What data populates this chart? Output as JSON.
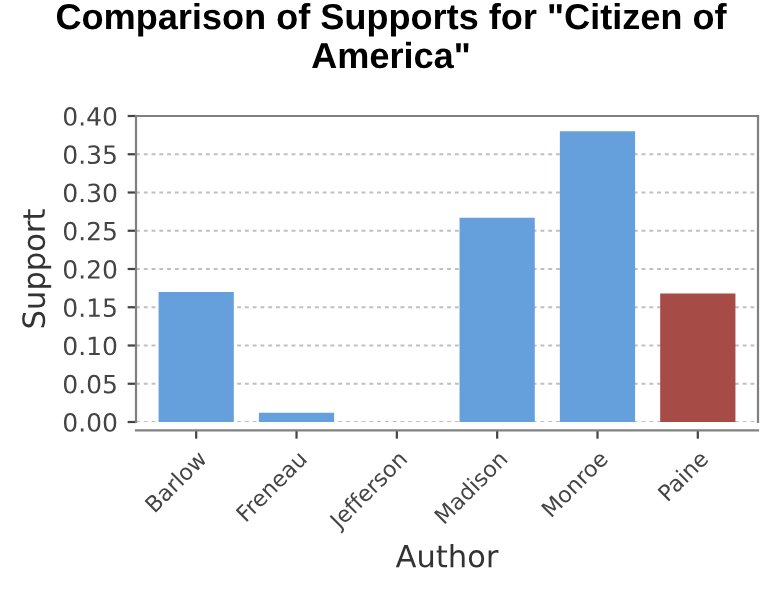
{
  "chart_data": {
    "type": "bar",
    "title": "Comparison of Supports for \"Citizen of America\"",
    "xlabel": "Author",
    "ylabel": "Support",
    "categories": [
      "Barlow",
      "Freneau",
      "Jefferson",
      "Madison",
      "Monroe",
      "Paine"
    ],
    "values": [
      0.17,
      0.012,
      0,
      0.267,
      0.38,
      0.168
    ],
    "colors": [
      "#659fdc",
      "#659fdc",
      "#659fdc",
      "#659fdc",
      "#659fdc",
      "#a64b45"
    ],
    "ylim": [
      0,
      0.4
    ],
    "yticks": [
      {
        "value": 0,
        "label": "0.00"
      },
      {
        "value": 0.05,
        "label": "0.05"
      },
      {
        "value": 0.1,
        "label": "0.10"
      },
      {
        "value": 0.15,
        "label": "0.15"
      },
      {
        "value": 0.2,
        "label": "0.20"
      },
      {
        "value": 0.25,
        "label": "0.25"
      },
      {
        "value": 0.3,
        "label": "0.30"
      },
      {
        "value": 0.35,
        "label": "0.35"
      },
      {
        "value": 0.4,
        "label": "0.40"
      }
    ],
    "grid": "y"
  }
}
